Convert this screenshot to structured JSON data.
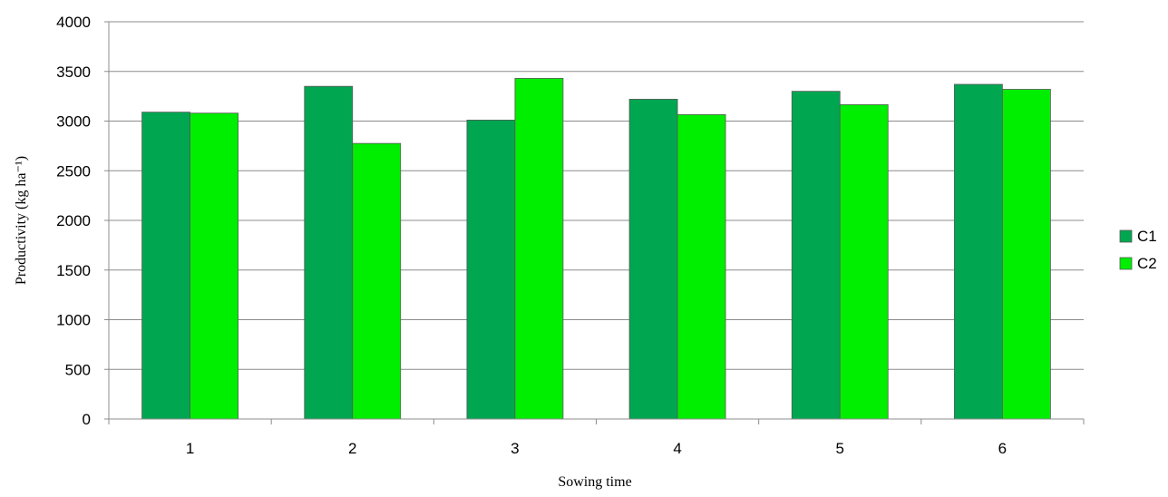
{
  "chart_data": {
    "type": "bar",
    "categories": [
      "1",
      "2",
      "3",
      "4",
      "5",
      "6"
    ],
    "series": [
      {
        "name": "C1",
        "values": [
          3090,
          3350,
          3010,
          3220,
          3300,
          3370
        ],
        "color": "#00a650"
      },
      {
        "name": "C2",
        "values": [
          3080,
          2775,
          3430,
          3065,
          3165,
          3320
        ],
        "color": "#00ee00"
      }
    ],
    "xlabel": "Sowing time",
    "ylabel": "Productivity (kg ha⁻¹)",
    "ylim": [
      0,
      4000
    ],
    "yticks": [
      "0",
      "500",
      "1000",
      "1500",
      "2000",
      "2500",
      "3000",
      "3500",
      "4000"
    ],
    "grid": true,
    "legend_position": "right"
  }
}
